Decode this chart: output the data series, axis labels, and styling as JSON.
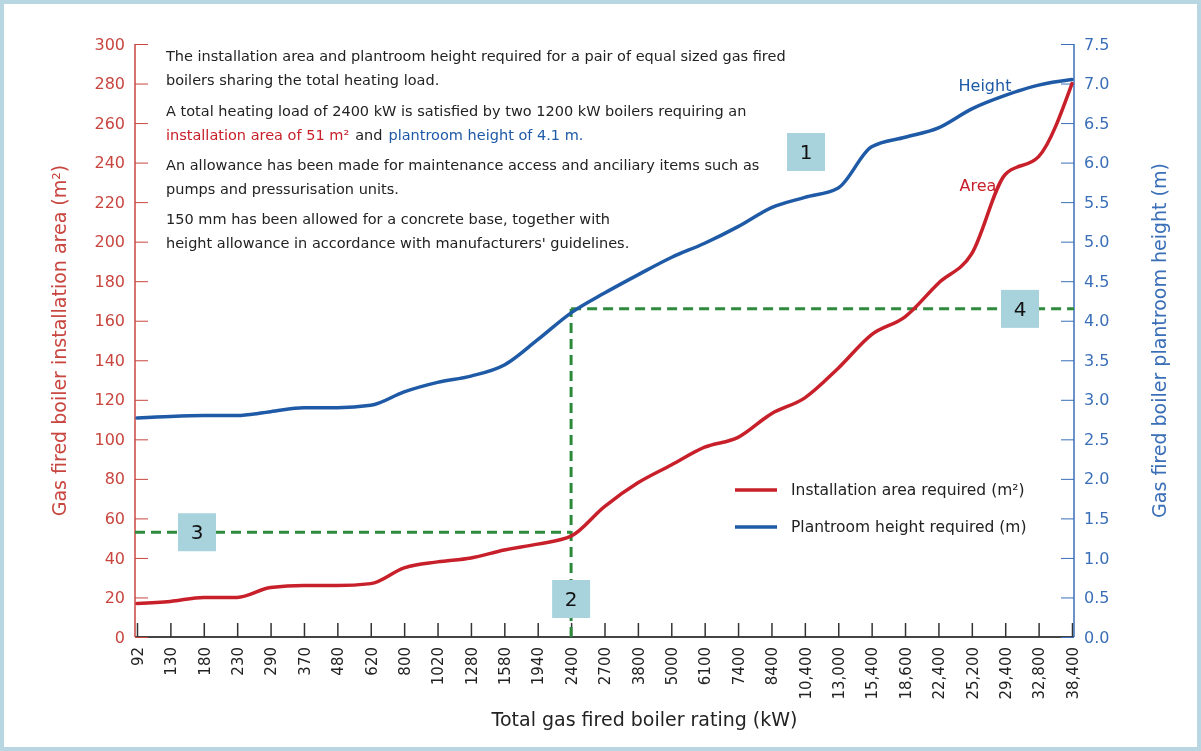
{
  "chart_data": {
    "type": "line",
    "xlabel": "Total gas fired boiler rating (kW)",
    "ylabel": "Gas fired boiler installation area (m²)",
    "y2label": "Gas fired boiler plantroom height (m)",
    "categories": [
      "92",
      "130",
      "180",
      "230",
      "290",
      "370",
      "480",
      "620",
      "800",
      "1020",
      "1280",
      "1580",
      "1940",
      "2400",
      "2700",
      "3800",
      "5000",
      "6100",
      "7400",
      "8400",
      "10,400",
      "13,000",
      "15,400",
      "18,600",
      "22,400",
      "25,200",
      "29,400",
      "32,800",
      "38,400"
    ],
    "series": [
      {
        "name": "Installation area required (m²)",
        "color": "#c8202a",
        "values": [
          17,
          18,
          20,
          20,
          25,
          26,
          26,
          27,
          35,
          38,
          40,
          44,
          47,
          51,
          66,
          78,
          87,
          96,
          101,
          113,
          121,
          136,
          153,
          162,
          179,
          194,
          234,
          243,
          280
        ]
      },
      {
        "name": "Plantroom height required (m)",
        "color": "#1f5aa6",
        "axis": "y2",
        "values": [
          2.77,
          2.79,
          2.8,
          2.8,
          2.85,
          2.9,
          2.9,
          2.93,
          3.1,
          3.22,
          3.3,
          3.44,
          3.76,
          4.1,
          4.35,
          4.58,
          4.8,
          4.98,
          5.19,
          5.43,
          5.56,
          5.68,
          6.2,
          6.32,
          6.44,
          6.68,
          6.85,
          6.98,
          7.05
        ]
      }
    ],
    "ylim": [
      0,
      300
    ],
    "yticks": [
      0,
      20,
      40,
      60,
      80,
      100,
      120,
      140,
      160,
      180,
      200,
      220,
      240,
      260,
      280,
      300
    ],
    "y2lim": [
      0,
      7.5
    ],
    "y2ticks": [
      {
        "value": 0,
        "label": "0.0"
      },
      {
        "value": 0.5,
        "label": "0.5"
      },
      {
        "value": 1,
        "label": "1.0"
      },
      {
        "value": 1.5,
        "label": "1.5"
      },
      {
        "value": 2,
        "label": "2.0"
      },
      {
        "value": 2.5,
        "label": "2.5"
      },
      {
        "value": 3,
        "label": "3.0"
      },
      {
        "value": 3.5,
        "label": "3.5"
      },
      {
        "value": 4,
        "label": "4.0"
      },
      {
        "value": 4.5,
        "label": "4.5"
      },
      {
        "value": 5,
        "label": "5.0"
      },
      {
        "value": 5.5,
        "label": "5.5"
      },
      {
        "value": 6,
        "label": "6.0"
      },
      {
        "value": 6.5,
        "label": "6.5"
      },
      {
        "value": 7,
        "label": "7.0"
      },
      {
        "value": 7.5,
        "label": "7.5"
      }
    ],
    "legend": "bottom right",
    "ref_lines": [
      {
        "axis": "x",
        "value": "2400",
        "color": "#2e8b3e",
        "line_style": "dashed"
      },
      {
        "axis": "y",
        "value": 53,
        "color": "#2e8b3e",
        "line_style": "dashed"
      },
      {
        "axis": "y2",
        "value": 4.15,
        "color": "#2e8b3e",
        "line_style": "dashed"
      }
    ],
    "annotations": [
      "The installation area and plantroom height required for a pair of equal sized gas fired",
      "boilers sharing the total heating load.",
      "A total heating load of 2400 kW is satisfied by two 1200 kW boilers requiring  an",
      "installation area of 51 m²",
      "and",
      "plantroom height of 4.1 m.",
      "An allowance has been made for maintenance access and anciliary items such as",
      "pumps and pressurisation units.",
      "150 mm has been allowed for a concrete base, together with",
      "height allowance in accordance with manufacturers' guidelines.",
      "1",
      "2",
      "3",
      "4",
      "Height",
      "Area"
    ]
  }
}
